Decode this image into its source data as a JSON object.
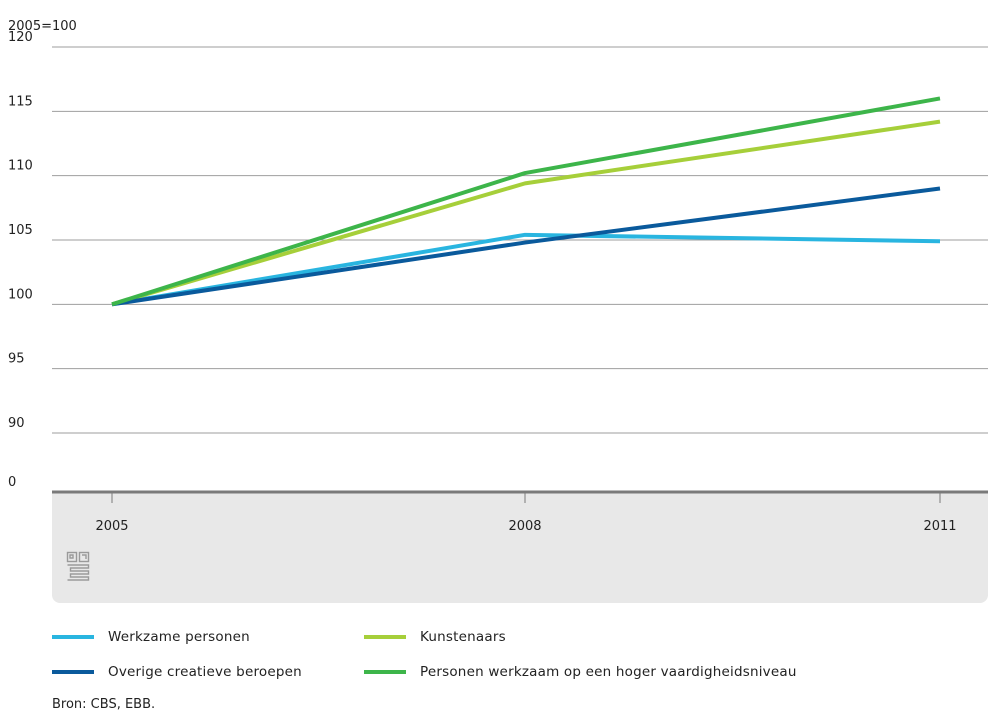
{
  "chart_data": {
    "type": "line",
    "index_label": "2005=100",
    "x": [
      "2005",
      "2008",
      "2011"
    ],
    "y_ticks": [
      "0",
      "90",
      "95",
      "100",
      "105",
      "110",
      "115",
      "120"
    ],
    "ylim": [
      85,
      120
    ],
    "axis_break": "0",
    "series": [
      {
        "name": "Werkzame personen",
        "color": "#29b5e0",
        "values": [
          100,
          105.4,
          104.9
        ]
      },
      {
        "name": "Kunstenaars",
        "color": "#a6cf3a",
        "values": [
          100,
          109.4,
          114.2
        ]
      },
      {
        "name": "Overige creatieve beroepen",
        "color": "#0a5a9c",
        "values": [
          100,
          104.8,
          109.0
        ]
      },
      {
        "name": "Personen werkzaam op een hoger vaardigheidsniveau",
        "color": "#3db54a",
        "values": [
          100,
          110.2,
          116.0
        ]
      }
    ],
    "grid": true,
    "legend_position": "bottom"
  },
  "logo": {
    "icon": "cbs-logo-icon",
    "color": "#9a9a9a"
  },
  "source": "Bron: CBS, EBB.",
  "colors": {
    "grid": "#9e9e9e",
    "axis": "#7a7a7a",
    "footer_band": "#e8e8e8"
  }
}
